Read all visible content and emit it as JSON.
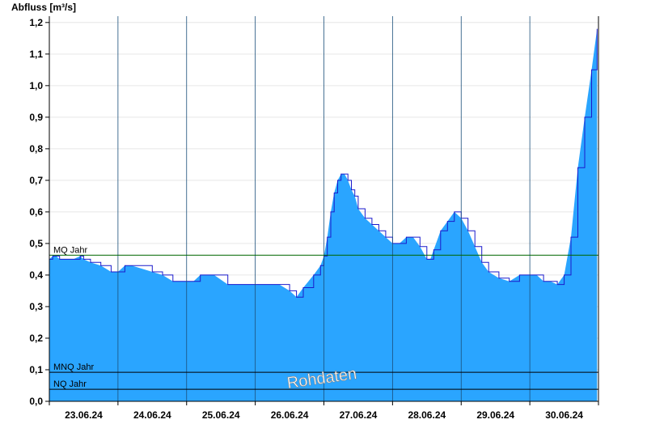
{
  "chart_data": {
    "type": "area",
    "ylabel": "Abfluss [m³/s]",
    "xlabel": "",
    "ylim": [
      0,
      1.22
    ],
    "yticks": [
      "0,0",
      "0,1",
      "0,2",
      "0,3",
      "0,4",
      "0,5",
      "0,6",
      "0,7",
      "0,8",
      "0,9",
      "1,0",
      "1,1",
      "1,2"
    ],
    "ytick_values": [
      0,
      0.1,
      0.2,
      0.3,
      0.4,
      0.5,
      0.6,
      0.7,
      0.8,
      0.9,
      1.0,
      1.1,
      1.2
    ],
    "xlim": [
      0,
      8
    ],
    "categories": [
      "23.06.24",
      "24.06.24",
      "25.06.24",
      "26.06.24",
      "27.06.24",
      "28.06.24",
      "29.06.24",
      "30.06.24"
    ],
    "grid": true,
    "fill_color": "#2aa5ff",
    "line_color": "#1a1acc",
    "series": [
      {
        "x": [
          0,
          0.05,
          0.1,
          0.15,
          0.25,
          0.35,
          0.45,
          0.5,
          0.6,
          0.75,
          0.9,
          1.0,
          1.1,
          1.2,
          1.5,
          1.65,
          1.8,
          1.95,
          2.1,
          2.2,
          2.4,
          2.6,
          2.8,
          3.1,
          3.35,
          3.5,
          3.6,
          3.7,
          3.85,
          3.95,
          4.0,
          4.05,
          4.1,
          4.15,
          4.2,
          4.25,
          4.3,
          4.35,
          4.4,
          4.45,
          4.5,
          4.6,
          4.7,
          4.8,
          4.9,
          5.0,
          5.1,
          5.2,
          5.3,
          5.4,
          5.5,
          5.55,
          5.6,
          5.7,
          5.8,
          5.9,
          6.0,
          6.1,
          6.2,
          6.3,
          6.4,
          6.55,
          6.7,
          6.85,
          7.0,
          7.1,
          7.2,
          7.3,
          7.4,
          7.5,
          7.6,
          7.7,
          7.8,
          7.9,
          7.98
        ],
        "y": [
          0.45,
          0.46,
          0.46,
          0.45,
          0.45,
          0.45,
          0.46,
          0.45,
          0.44,
          0.43,
          0.41,
          0.41,
          0.43,
          0.43,
          0.41,
          0.4,
          0.38,
          0.38,
          0.38,
          0.4,
          0.4,
          0.37,
          0.37,
          0.37,
          0.37,
          0.35,
          0.33,
          0.36,
          0.4,
          0.43,
          0.46,
          0.52,
          0.6,
          0.66,
          0.7,
          0.72,
          0.72,
          0.7,
          0.67,
          0.65,
          0.61,
          0.58,
          0.56,
          0.54,
          0.52,
          0.5,
          0.5,
          0.52,
          0.52,
          0.49,
          0.45,
          0.45,
          0.48,
          0.54,
          0.57,
          0.6,
          0.58,
          0.54,
          0.49,
          0.44,
          0.41,
          0.39,
          0.38,
          0.4,
          0.4,
          0.4,
          0.38,
          0.38,
          0.37,
          0.4,
          0.52,
          0.74,
          0.9,
          1.05,
          1.18
        ]
      }
    ],
    "reference_lines": [
      {
        "name": "MQ Jahr",
        "value": 0.463,
        "color": "#006600"
      },
      {
        "name": "MNQ Jahr",
        "value": 0.092,
        "color": "#000000"
      },
      {
        "name": "NQ Jahr",
        "value": 0.038,
        "color": "#000000"
      }
    ],
    "watermark": "Rohdaten"
  }
}
